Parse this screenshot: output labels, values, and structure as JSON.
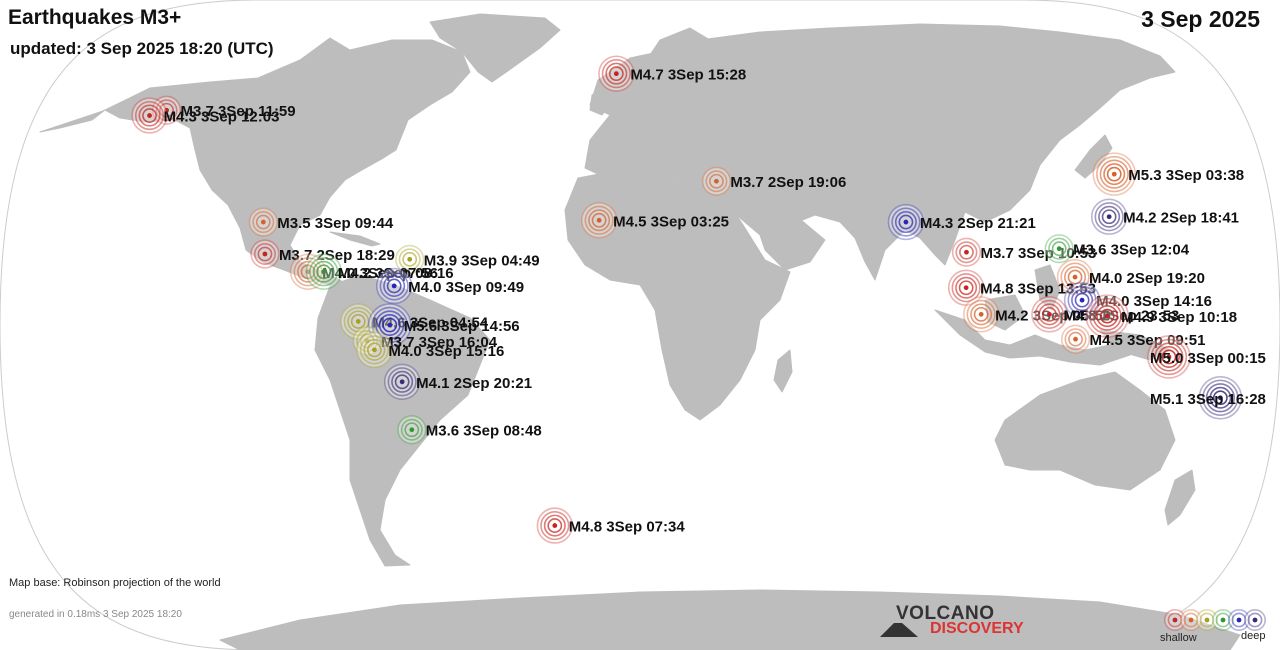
{
  "header": {
    "title": "Earthquakes M3+",
    "updated": "updated:  3 Sep 2025 18:20 (UTC)",
    "date": "3 Sep 2025"
  },
  "footer": {
    "map_base": "Map base: Robinson projection of the world",
    "generated": "generated in 0.18ms  3 Sep 2025 18:20"
  },
  "logo": {
    "line1": "VOLCANO",
    "line2": "DISCOVERY"
  },
  "legend": {
    "shallow": "shallow",
    "deep": "deep",
    "colors": [
      "#c8241e",
      "#d8602a",
      "#a8a020",
      "#2e9a2e",
      "#2828b8",
      "#3a2a7a"
    ]
  },
  "colors": {
    "land": "#bdbdbd",
    "ocean": "#ffffff",
    "depth_red": "#c8241e",
    "depth_orange": "#d8602a",
    "depth_yellow": "#a8a020",
    "depth_green": "#2e9a2e",
    "depth_blue": "#2828b8",
    "depth_purple": "#3a2a7a"
  },
  "quakes": [
    {
      "label": "M4.7  3Sep 15:28",
      "lat": 70.8,
      "lon": -8.0,
      "color": "#c8241e",
      "rings": 4
    },
    {
      "label": "M3.7  3Sep 11:59",
      "lat": 60.5,
      "lon": -152.5,
      "color": "#c8241e",
      "rings": 3
    },
    {
      "label": "M4.3  3Sep 12:03",
      "lat": 59.0,
      "lon": -157.0,
      "color": "#c8241e",
      "rings": 4
    },
    {
      "label": "M5.3  3Sep 03:38",
      "lat": 42.5,
      "lon": 143.5,
      "color": "#d8602a",
      "rings": 5
    },
    {
      "label": "M3.7  2Sep 19:06",
      "lat": 40.5,
      "lon": 23.0,
      "color": "#d8602a",
      "rings": 3
    },
    {
      "label": "M4.2  2Sep 18:41",
      "lat": 30.5,
      "lon": 138.0,
      "color": "#3a2a7a",
      "rings": 4
    },
    {
      "label": "M3.5  3Sep 09:44",
      "lat": 29.0,
      "lon": -110.5,
      "color": "#d8602a",
      "rings": 3
    },
    {
      "label": "M4.3  2Sep 21:21",
      "lat": 29.0,
      "lon": 78.0,
      "color": "#2828b8",
      "rings": 4
    },
    {
      "label": "M4.5  3Sep 03:25",
      "lat": 29.5,
      "lon": -12.0,
      "color": "#d8602a",
      "rings": 4
    },
    {
      "label": "M3.7  3Sep 10:53",
      "lat": 20.5,
      "lon": 94.5,
      "color": "#c8241e",
      "rings": 3
    },
    {
      "label": "M3.6  3Sep 12:04",
      "lat": 21.5,
      "lon": 121.5,
      "color": "#2e9a2e",
      "rings": 3
    },
    {
      "label": "M3.7  2Sep 18:29",
      "lat": 20.0,
      "lon": -108.5,
      "color": "#c8241e",
      "rings": 3
    },
    {
      "label": "M3.9  3Sep 04:49",
      "lat": 18.5,
      "lon": -66.5,
      "color": "#a8a020",
      "rings": 3
    },
    {
      "label": "M4.0  3Sep 07:56",
      "lat": 15.0,
      "lon": -95.5,
      "color": "#d8602a",
      "rings": 4
    },
    {
      "label": "M4.2  3Sep 08:16",
      "lat": 15.0,
      "lon": -91.0,
      "color": "#2e9a2e",
      "rings": 4
    },
    {
      "label": "M4.0  2Sep 19:20",
      "lat": 13.5,
      "lon": 125.0,
      "color": "#d8602a",
      "rings": 4
    },
    {
      "label": "M4.0  3Sep 09:49",
      "lat": 11.0,
      "lon": -70.5,
      "color": "#2828b8",
      "rings": 4
    },
    {
      "label": "M4.8  3Sep 13:53",
      "lat": 10.5,
      "lon": 93.5,
      "color": "#c8241e",
      "rings": 4
    },
    {
      "label": "M4.0  3Sep 14:16",
      "lat": 7.0,
      "lon": 126.5,
      "color": "#2828b8",
      "rings": 4
    },
    {
      "label": "M4.2  3Sep 05:50",
      "lat": 3.0,
      "lon": 97.5,
      "color": "#d8602a",
      "rings": 4
    },
    {
      "label": "M4.8  2Sep 23:53",
      "lat": 3.0,
      "lon": 117.0,
      "color": "#c8241e",
      "rings": 4
    },
    {
      "label": "M4.9  3Sep 10:18",
      "lat": 2.5,
      "lon": 133.5,
      "color": "#c8241e",
      "rings": 5
    },
    {
      "label": "M4.6  3Sep 04:54",
      "lat": 1.0,
      "lon": -80.5,
      "color": "#a8a020",
      "rings": 4
    },
    {
      "label": "M5.6  3Sep 14:56",
      "lat": 0.0,
      "lon": -71.5,
      "color": "#2828b8",
      "rings": 5
    },
    {
      "label": "M4.5  3Sep 09:51",
      "lat": -4.0,
      "lon": 124.5,
      "color": "#d8602a",
      "rings": 3
    },
    {
      "label": "M3.7  3Sep 16:04",
      "lat": -4.5,
      "lon": -78.0,
      "color": "#a8a020",
      "rings": 3
    },
    {
      "label": "M4.0  3Sep 15:16",
      "lat": -7.0,
      "lon": -76.0,
      "color": "#a8a020",
      "rings": 4
    },
    {
      "label": "M5.0  3Sep 00:15",
      "lat": -9.0,
      "lon": 151.5,
      "color": "#c8241e",
      "rings": 5
    },
    {
      "label": "M4.1  2Sep 20:21",
      "lat": -16.0,
      "lon": -68.5,
      "color": "#3a2a7a",
      "rings": 4
    },
    {
      "label": "M5.1  3Sep 16:28",
      "lat": -20.5,
      "lon": 168.0,
      "color": "#3a2a7a",
      "rings": 5
    },
    {
      "label": "M3.6  3Sep 08:48",
      "lat": -29.5,
      "lon": -67.0,
      "color": "#2e9a2e",
      "rings": 3
    },
    {
      "label": "M4.8  3Sep 07:34",
      "lat": -56.5,
      "lon": -27.0,
      "color": "#c8241e",
      "rings": 4
    }
  ]
}
